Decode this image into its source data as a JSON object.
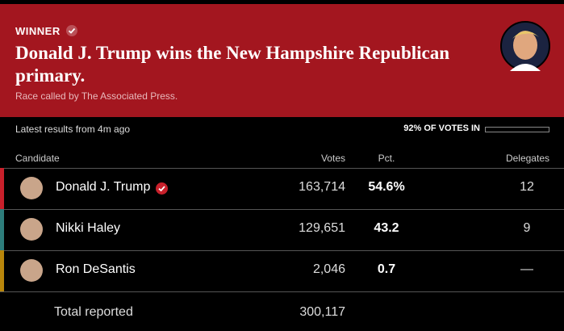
{
  "header": {
    "label": "WINNER",
    "title": "Donald J. Trump wins the New Hampshire Republican primary.",
    "subtitle": "Race called by The Associated Press."
  },
  "status": {
    "updated": "Latest results from 4m ago",
    "reporting": "92% OF VOTES IN"
  },
  "table": {
    "columns": [
      "Candidate",
      "Votes",
      "Pct.",
      "Delegates"
    ],
    "rows": [
      [
        "Donald J. Trump",
        "163,714",
        "54.6%",
        "12"
      ],
      [
        "Nikki Haley",
        "129,651",
        "43.2",
        "9"
      ],
      [
        "Ron DeSantis",
        "2,046",
        "0.7",
        "—"
      ]
    ],
    "total": [
      "Total reported",
      "300,117"
    ]
  }
}
